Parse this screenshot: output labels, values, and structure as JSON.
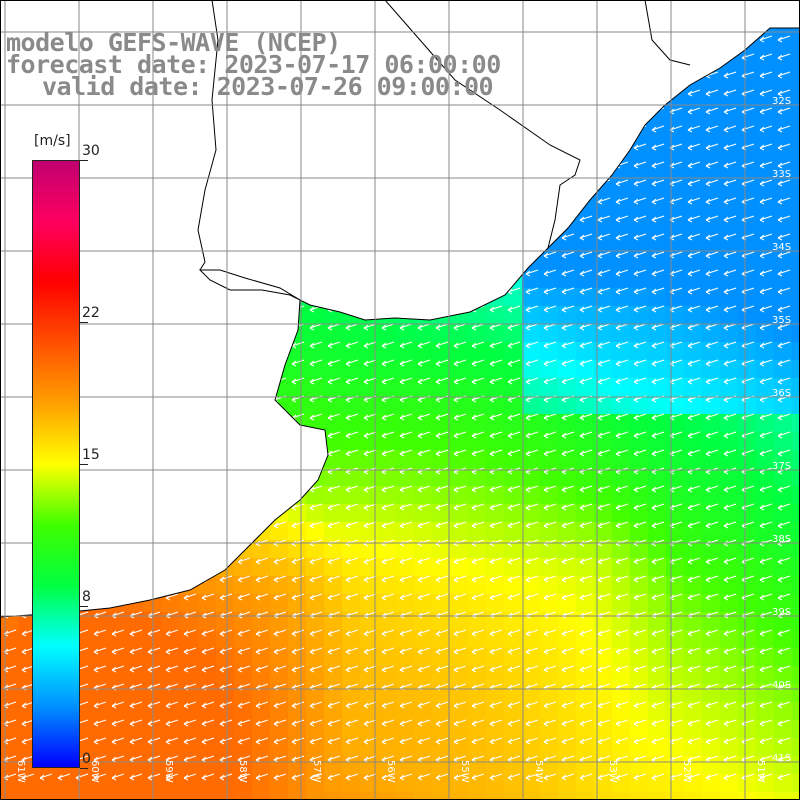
{
  "title": {
    "line1": "modelo GEFS-WAVE (NCEP)",
    "line2": "forecast date: 2023-07-17 06:00:00",
    "line3": "valid date: 2023-07-26 09:00:00"
  },
  "colorbar": {
    "unit": "[m/s]",
    "ticks": [
      {
        "label": "30",
        "value": 30
      },
      {
        "label": "22",
        "value": 22
      },
      {
        "label": "15",
        "value": 15
      },
      {
        "label": "8",
        "value": 8
      },
      {
        "label": "0",
        "value": 0
      }
    ],
    "min": 0,
    "max": 30,
    "colors": [
      "#0000ff",
      "#0090ff",
      "#00ffff",
      "#00ff40",
      "#40ff00",
      "#ffff00",
      "#ffa000",
      "#ff5000",
      "#ff0000",
      "#ff0060",
      "#c00070"
    ]
  },
  "map": {
    "lat_labels": [
      "32S",
      "33S",
      "34S",
      "35S",
      "36S",
      "37S",
      "38S",
      "39S",
      "40S",
      "41S"
    ],
    "lon_labels": [
      "61W",
      "60W",
      "59W",
      "58W",
      "57W",
      "56W",
      "55W",
      "54W",
      "53W",
      "52W",
      "51W"
    ],
    "land_color": "#ffffff",
    "grid_color": "#888888",
    "arrow_color": "#ffffff",
    "wind_direction": "from east-northeast"
  }
}
